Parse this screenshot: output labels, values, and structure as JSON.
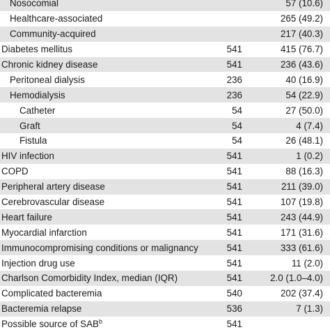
{
  "rows": [
    {
      "label": "Nosocomial",
      "indent": 1,
      "n": "",
      "value": "57 (10.6)"
    },
    {
      "label": "Healthcare-associated",
      "indent": 1,
      "n": "",
      "value": "265 (49.2)"
    },
    {
      "label": "Community-acquired",
      "indent": 1,
      "n": "",
      "value": "217 (40.3)"
    },
    {
      "label": "Diabetes mellitus",
      "indent": 0,
      "n": "541",
      "value": "415 (76.7)"
    },
    {
      "label": "Chronic kidney disease",
      "indent": 0,
      "n": "541",
      "value": "236 (43.6)"
    },
    {
      "label": "Peritoneal dialysis",
      "indent": 1,
      "n": "236",
      "value": "40 (16.9)"
    },
    {
      "label": "Hemodialysis",
      "indent": 1,
      "n": "236",
      "value": "54 (22.9)"
    },
    {
      "label": "Catheter",
      "indent": 2,
      "n": "54",
      "value": "27 (50.0)"
    },
    {
      "label": "Graft",
      "indent": 2,
      "n": "54",
      "value": "4 (7.4)"
    },
    {
      "label": "Fistula",
      "indent": 2,
      "n": "54",
      "value": "26 (48.1)"
    },
    {
      "label": "HIV infection",
      "indent": 0,
      "n": "541",
      "value": "1 (0.2)"
    },
    {
      "label": "COPD",
      "indent": 0,
      "n": "541",
      "value": "88 (16.3)"
    },
    {
      "label": "Peripheral artery disease",
      "indent": 0,
      "n": "541",
      "value": "211 (39.0)"
    },
    {
      "label": "Cerebrovascular disease",
      "indent": 0,
      "n": "541",
      "value": "107 (19.8)"
    },
    {
      "label": "Heart failure",
      "indent": 0,
      "n": "541",
      "value": "243 (44.9)"
    },
    {
      "label": "Myocardial infarction",
      "indent": 0,
      "n": "541",
      "value": "171 (31.6)"
    },
    {
      "label": "Immunocompromising conditions or malignancy",
      "indent": 0,
      "n": "541",
      "value": "333 (61.6)"
    },
    {
      "label": "Injection drug use",
      "indent": 0,
      "n": "541",
      "value": "11 (2.0)"
    },
    {
      "label": "Charlson Comorbidity Index, median (IQR)",
      "indent": 0,
      "n": "541",
      "value": "2.0 (1.0–4.0)"
    },
    {
      "label": "Complicated bacteremia",
      "indent": 0,
      "n": "540",
      "value": "202 (37.4)"
    },
    {
      "label": "Bacteremia relapse",
      "indent": 0,
      "n": "536",
      "value": "7 (1.3)"
    },
    {
      "label": "Possible source of SAB",
      "label_sup": "b",
      "indent": 0,
      "n": "541",
      "value": ""
    }
  ]
}
